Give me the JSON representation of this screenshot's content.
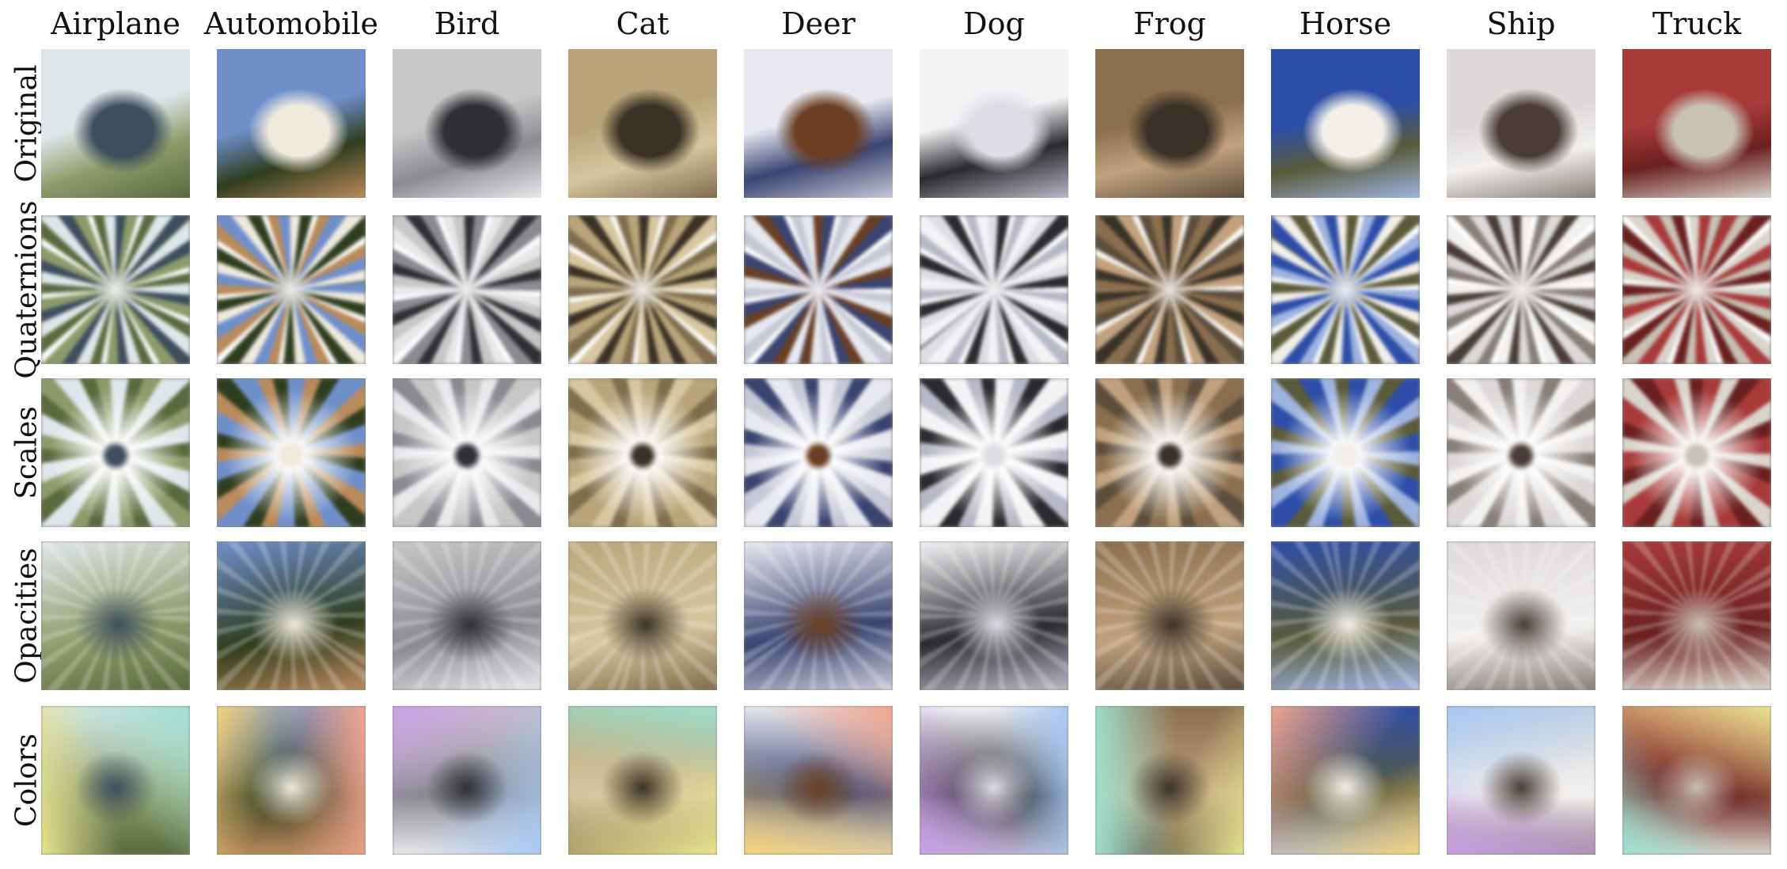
{
  "figure": {
    "columns": [
      {
        "label": "Airplane",
        "palette": [
          "#dfe6ea",
          "#3f4d5c",
          "#8d9b6a",
          "#5a6a3e"
        ]
      },
      {
        "label": "Automobile",
        "palette": [
          "#6f8fcb",
          "#efe9de",
          "#2f3d1f",
          "#b98a5a"
        ]
      },
      {
        "label": "Bird",
        "palette": [
          "#c9c6c6",
          "#2f3035",
          "#8a8a92",
          "#e9e7ea"
        ]
      },
      {
        "label": "Cat",
        "palette": [
          "#b9a579",
          "#3a3226",
          "#d6c79e",
          "#7f6e4c"
        ]
      },
      {
        "label": "Deer",
        "palette": [
          "#e7e8f0",
          "#6a3f24",
          "#3b4470",
          "#c6c8d6"
        ]
      },
      {
        "label": "Dog",
        "palette": [
          "#f3f3f6",
          "#dedde6",
          "#2b2a2e",
          "#b8b9c7"
        ]
      },
      {
        "label": "Frog",
        "palette": [
          "#8a6f4e",
          "#3a3229",
          "#c1a27d",
          "#5c4e3d"
        ]
      },
      {
        "label": "Horse",
        "palette": [
          "#2d4ea8",
          "#f2efe9",
          "#5a5b3a",
          "#9fb3e0"
        ]
      },
      {
        "label": "Ship",
        "palette": [
          "#dcd9d8",
          "#4a3d37",
          "#f3f1ef",
          "#8a7f78"
        ]
      },
      {
        "label": "Truck",
        "palette": [
          "#a83a3a",
          "#c8c1b6",
          "#6b2020",
          "#d9d4cc"
        ]
      }
    ],
    "rows": [
      {
        "label": "Original",
        "style": "photo"
      },
      {
        "label": "Quaternions",
        "style": "radial"
      },
      {
        "label": "Scales",
        "style": "burst"
      },
      {
        "label": "Opacities",
        "style": "soft"
      },
      {
        "label": "Colors",
        "style": "tinted"
      }
    ]
  }
}
